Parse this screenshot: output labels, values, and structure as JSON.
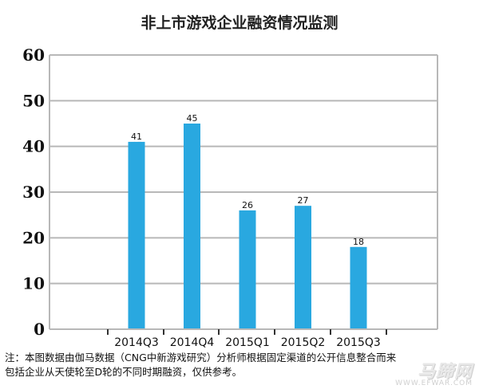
{
  "chart_data": {
    "type": "bar",
    "title": "非上市游戏企业融资情况监测",
    "categories": [
      "2014Q3",
      "2014Q4",
      "2015Q1",
      "2015Q2",
      "2015Q3"
    ],
    "values": [
      41,
      45,
      26,
      27,
      18
    ],
    "ylim": [
      0,
      60
    ],
    "yticks": [
      "0",
      "10",
      "20",
      "30",
      "40",
      "50",
      "60"
    ],
    "grid": true,
    "bar_color": "#29a8e0",
    "xlabel": "",
    "ylabel": ""
  },
  "footnote": {
    "line1": "注：本图数据由伽马数据（CNG中新游戏研究）分析师根据固定渠道的公开信息整合而来",
    "line2": "包括企业从天使轮至D轮的不同时期融资，仅供参考。"
  },
  "watermark": {
    "logo": "马蹄网",
    "url": "WWW.EFWAR.COM"
  }
}
